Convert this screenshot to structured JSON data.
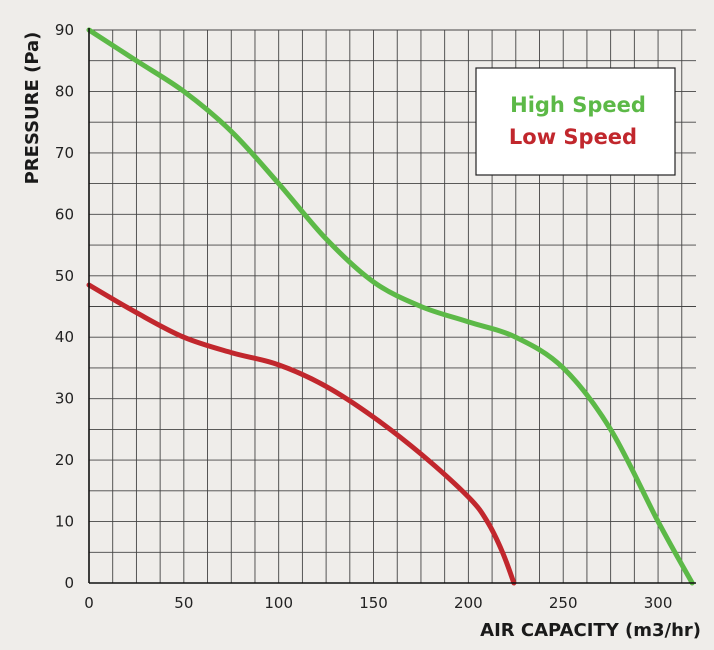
{
  "chart_data": {
    "type": "line",
    "title": "",
    "xlabel": "AIR CAPACITY (m3/hr)",
    "ylabel": "PRESSURE (Pa)",
    "xlim": [
      0,
      320
    ],
    "ylim": [
      0,
      90
    ],
    "x_ticks": [
      "0",
      "50",
      "100",
      "150",
      "200",
      "250",
      "300"
    ],
    "y_ticks": [
      "0",
      "10",
      "20",
      "30",
      "40",
      "50",
      "60",
      "70",
      "80",
      "90"
    ],
    "grid": true,
    "legend_position": "top-right",
    "series": [
      {
        "name": "High Speed",
        "color": "#5cb947",
        "x": [
          0,
          25,
          50,
          75,
          100,
          125,
          150,
          175,
          200,
          225,
          250,
          275,
          300,
          318
        ],
        "y": [
          90,
          85,
          80,
          73.5,
          65,
          56,
          49,
          45,
          42.5,
          40,
          35,
          25,
          10,
          0
        ]
      },
      {
        "name": "Low Speed",
        "color": "#c1272d",
        "x": [
          0,
          25,
          50,
          75,
          100,
          125,
          150,
          175,
          200,
          210,
          218,
          224
        ],
        "y": [
          48.5,
          44,
          40,
          37.5,
          35.5,
          32,
          27,
          21,
          14,
          10,
          5,
          0
        ]
      }
    ]
  }
}
